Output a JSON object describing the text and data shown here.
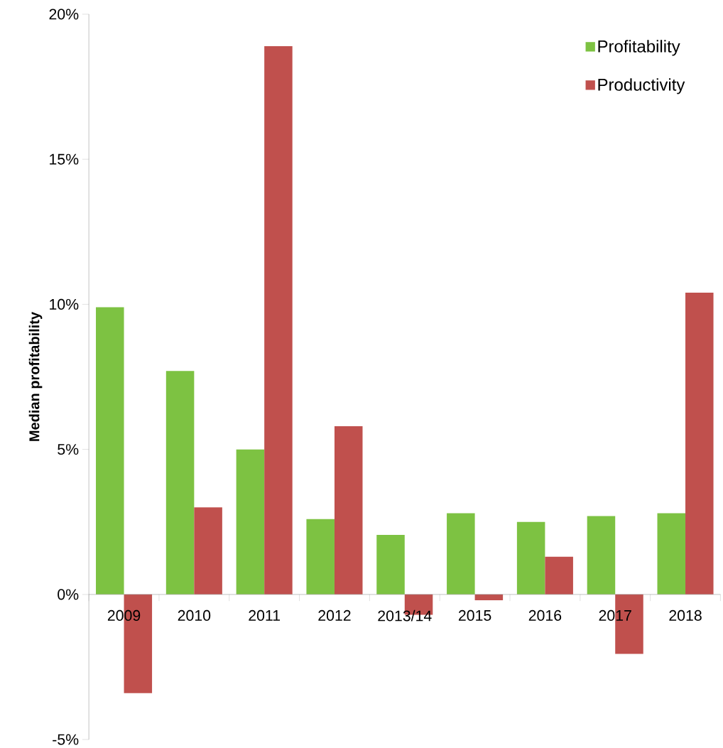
{
  "chart_data": {
    "type": "bar",
    "ylabel": "Median profitability",
    "categories": [
      "2009",
      "2010",
      "2011",
      "2012",
      "2013/14",
      "2015",
      "2016",
      "2017",
      "2018"
    ],
    "series": [
      {
        "name": "Profitability",
        "color": "#7dc242",
        "values": [
          9.9,
          7.7,
          5.0,
          2.6,
          2.05,
          2.8,
          2.5,
          2.7,
          2.8
        ]
      },
      {
        "name": "Productivity",
        "color": "#c0504d",
        "values": [
          -3.4,
          3.0,
          18.9,
          5.8,
          -0.7,
          -0.2,
          1.3,
          -2.05,
          10.4
        ]
      }
    ],
    "ylim": [
      -5,
      20
    ],
    "yticks": [
      {
        "value": -5,
        "label": "-5%"
      },
      {
        "value": 0,
        "label": "0%"
      },
      {
        "value": 5,
        "label": "5%"
      },
      {
        "value": 10,
        "label": "10%"
      },
      {
        "value": 15,
        "label": "15%"
      },
      {
        "value": 20,
        "label": "20%"
      }
    ],
    "grid": false,
    "legend": "top right"
  }
}
